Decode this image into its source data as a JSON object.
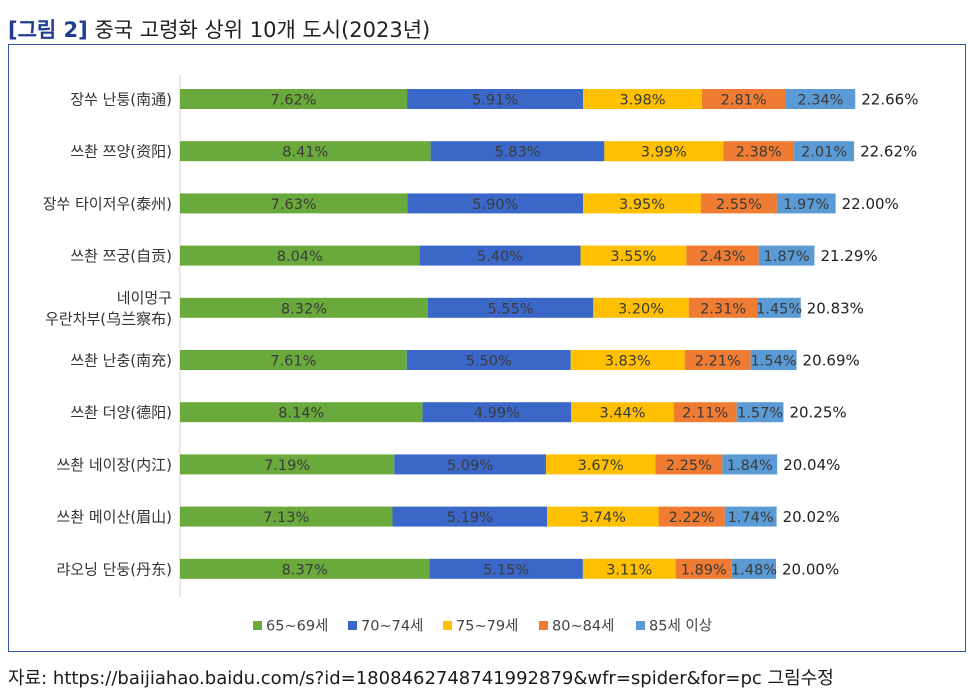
{
  "figure": {
    "tag": "[그림 2]",
    "title": "중국 고령화 상위 10개 도시(2023년)",
    "source": "자료: https://baijiahao.baidu.com/s?id=1808462748741992879&wfr=spider&for=pc 그림수정"
  },
  "chart_data": {
    "type": "bar",
    "orientation": "horizontal",
    "stacked": true,
    "categories": [
      [
        "장쑤 난퉁(南通)"
      ],
      [
        "쓰촨 쯔양(资阳)"
      ],
      [
        "장쑤 타이저우(泰州)"
      ],
      [
        "쓰촨 쯔궁(自贡)"
      ],
      [
        "네이멍구",
        "우란차부(乌兰察布)"
      ],
      [
        "쓰촨 난충(南充)"
      ],
      [
        "쓰촨 더양(德阳)"
      ],
      [
        "쓰촨 네이장(内江)"
      ],
      [
        "쓰촨 메이산(眉山)"
      ],
      [
        "랴오닝 단둥(丹东)"
      ]
    ],
    "series": [
      {
        "name": "65~69세",
        "color": "#6aaa3c",
        "values": [
          7.62,
          8.41,
          7.63,
          8.04,
          8.32,
          7.61,
          8.14,
          7.19,
          7.13,
          8.37
        ]
      },
      {
        "name": "70~74세",
        "color": "#3b68c8",
        "values": [
          5.91,
          5.83,
          5.9,
          5.4,
          5.55,
          5.5,
          4.99,
          5.09,
          5.19,
          5.15
        ]
      },
      {
        "name": "75~79세",
        "color": "#fec000",
        "values": [
          3.98,
          3.99,
          3.95,
          3.55,
          3.2,
          3.83,
          3.44,
          3.67,
          3.74,
          3.11
        ]
      },
      {
        "name": "80~84세",
        "color": "#ef7c32",
        "values": [
          2.81,
          2.38,
          2.55,
          2.43,
          2.31,
          2.21,
          2.11,
          2.25,
          2.22,
          1.89
        ]
      },
      {
        "name": "85세 이상",
        "color": "#5b9bd5",
        "values": [
          2.34,
          2.01,
          1.97,
          1.87,
          1.45,
          1.54,
          1.57,
          1.84,
          1.74,
          1.48
        ]
      }
    ],
    "totals": [
      "22.66%",
      "22.62%",
      "22.00%",
      "21.29%",
      "20.83%",
      "20.69%",
      "20.25%",
      "20.04%",
      "20.02%",
      "20.00%"
    ],
    "value_format": "%",
    "legend": "bottom",
    "grid": false
  }
}
